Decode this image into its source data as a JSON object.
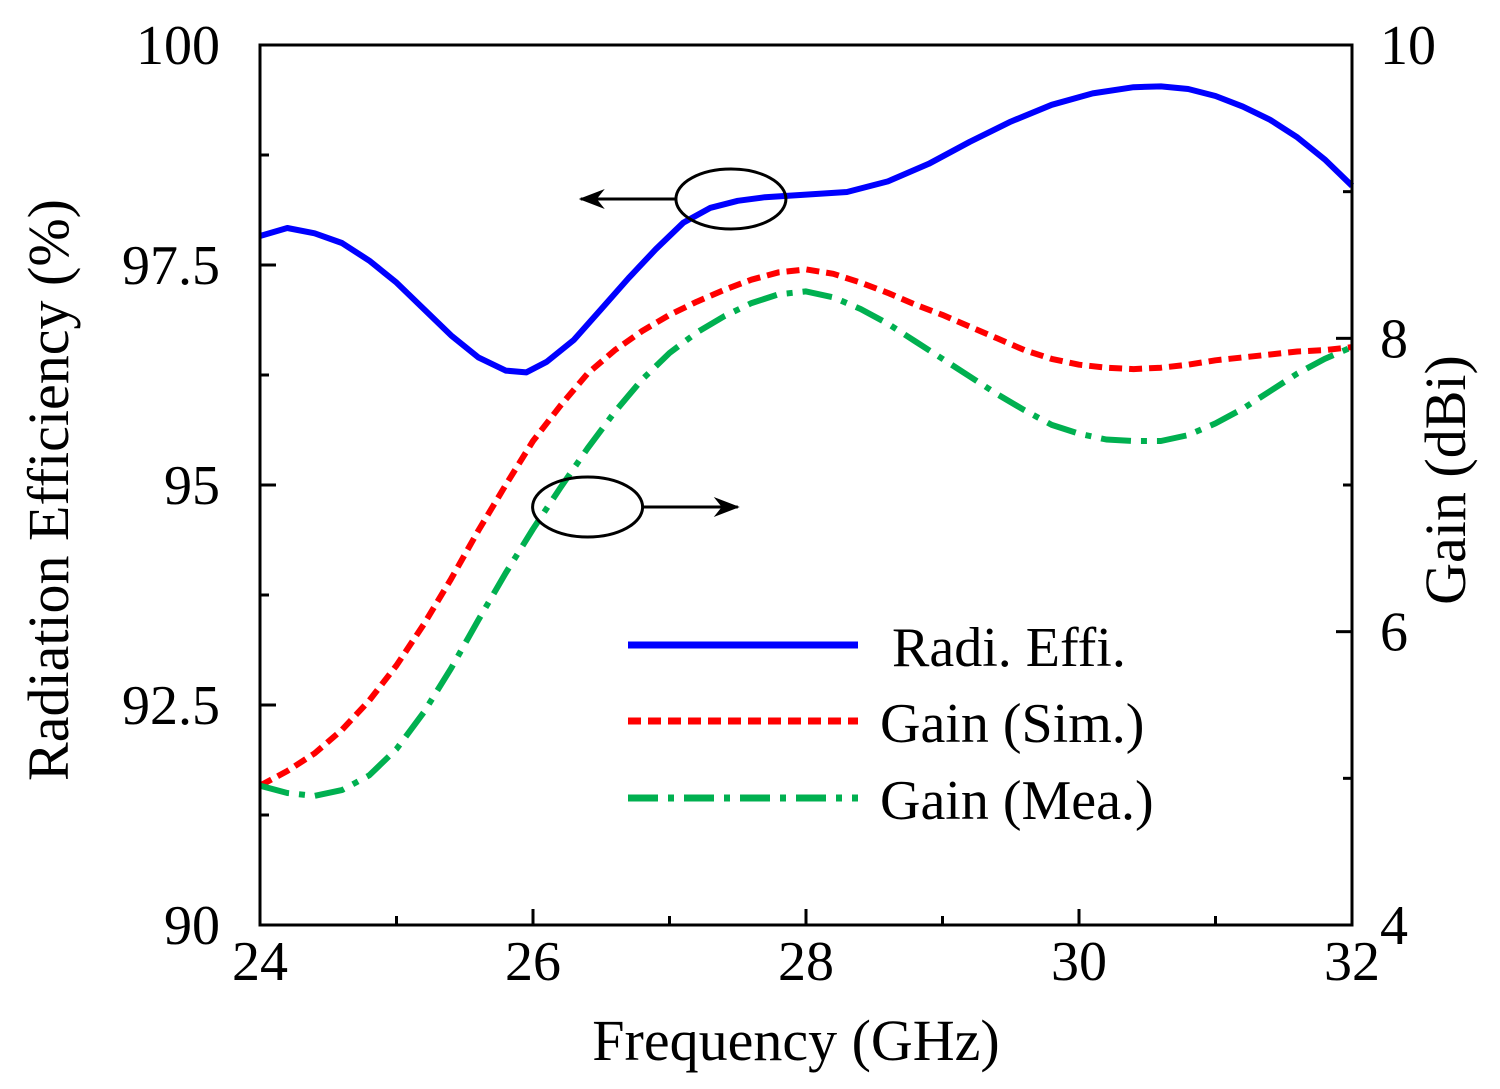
{
  "chart_data": {
    "type": "line",
    "xlabel": "Frequency (GHz)",
    "ylabel_left": "Radiation Efficiency (%)",
    "ylabel_right": "Gain (dBi)",
    "xlim": [
      24,
      32
    ],
    "ylim_left": [
      90,
      100
    ],
    "ylim_right": [
      4,
      10
    ],
    "x_ticks": [
      24,
      26,
      28,
      30,
      32
    ],
    "x_tick_labels": [
      "24",
      "26",
      "28",
      "30",
      "32"
    ],
    "x_minor_ticks": [
      25,
      27,
      29,
      31
    ],
    "y_left_ticks": [
      90,
      92.5,
      95,
      97.5,
      100
    ],
    "y_left_tick_labels": [
      "90",
      "92.5",
      "95",
      "97.5",
      "100"
    ],
    "y_left_minor_ticks": [
      91.25,
      93.75,
      96.25,
      98.75
    ],
    "y_right_ticks": [
      4,
      6,
      8,
      10
    ],
    "y_right_tick_labels": [
      "4",
      "6",
      "8",
      "10"
    ],
    "y_right_minor_ticks": [
      5,
      7,
      9
    ],
    "series": [
      {
        "name": "Radi. Effi.",
        "axis": "left",
        "color": "#0000ff",
        "style": "solid",
        "x": [
          24.0,
          24.2,
          24.4,
          24.6,
          24.8,
          25.0,
          25.2,
          25.4,
          25.6,
          25.8,
          25.95,
          26.1,
          26.3,
          26.5,
          26.7,
          26.9,
          27.1,
          27.3,
          27.5,
          27.7,
          28.0,
          28.3,
          28.6,
          28.9,
          29.2,
          29.5,
          29.8,
          30.1,
          30.4,
          30.6,
          30.8,
          31.0,
          31.2,
          31.4,
          31.6,
          31.8,
          32.0
        ],
        "y": [
          97.83,
          97.92,
          97.86,
          97.75,
          97.55,
          97.3,
          97.0,
          96.7,
          96.45,
          96.3,
          96.28,
          96.4,
          96.65,
          97.0,
          97.35,
          97.68,
          97.98,
          98.15,
          98.23,
          98.27,
          98.3,
          98.33,
          98.45,
          98.65,
          98.9,
          99.13,
          99.32,
          99.45,
          99.52,
          99.53,
          99.5,
          99.42,
          99.3,
          99.15,
          98.95,
          98.7,
          98.4
        ]
      },
      {
        "name": "Gain (Sim.)",
        "axis": "right",
        "color": "#ff0000",
        "style": "dotted",
        "x": [
          24.0,
          24.2,
          24.4,
          24.6,
          24.8,
          25.0,
          25.2,
          25.4,
          25.6,
          25.8,
          26.0,
          26.2,
          26.4,
          26.6,
          26.8,
          27.0,
          27.2,
          27.4,
          27.6,
          27.8,
          28.0,
          28.2,
          28.4,
          28.6,
          28.8,
          29.0,
          29.2,
          29.4,
          29.6,
          29.8,
          30.0,
          30.2,
          30.4,
          30.6,
          30.8,
          31.0,
          31.2,
          31.4,
          31.6,
          31.8,
          32.0
        ],
        "y": [
          4.95,
          5.05,
          5.17,
          5.33,
          5.53,
          5.77,
          6.05,
          6.36,
          6.69,
          7.0,
          7.3,
          7.54,
          7.76,
          7.92,
          8.05,
          8.16,
          8.25,
          8.33,
          8.4,
          8.45,
          8.47,
          8.44,
          8.38,
          8.31,
          8.23,
          8.16,
          8.08,
          8.0,
          7.92,
          7.86,
          7.82,
          7.8,
          7.79,
          7.8,
          7.82,
          7.85,
          7.87,
          7.89,
          7.91,
          7.92,
          7.94
        ]
      },
      {
        "name": "Gain (Mea.)",
        "axis": "right",
        "color": "#00b050",
        "style": "dashdot",
        "x": [
          24.0,
          24.2,
          24.4,
          24.6,
          24.8,
          25.0,
          25.2,
          25.4,
          25.6,
          25.8,
          26.0,
          26.2,
          26.4,
          26.6,
          26.8,
          27.0,
          27.2,
          27.4,
          27.6,
          27.8,
          28.0,
          28.2,
          28.4,
          28.6,
          28.8,
          29.0,
          29.2,
          29.4,
          29.6,
          29.8,
          30.0,
          30.2,
          30.4,
          30.6,
          30.8,
          31.0,
          31.2,
          31.4,
          31.6,
          31.8,
          32.0
        ],
        "y": [
          4.95,
          4.9,
          4.88,
          4.92,
          5.02,
          5.2,
          5.45,
          5.75,
          6.08,
          6.4,
          6.7,
          6.98,
          7.25,
          7.5,
          7.72,
          7.9,
          8.04,
          8.15,
          8.24,
          8.3,
          8.32,
          8.28,
          8.2,
          8.1,
          7.98,
          7.86,
          7.74,
          7.62,
          7.51,
          7.41,
          7.35,
          7.31,
          7.3,
          7.3,
          7.34,
          7.42,
          7.52,
          7.64,
          7.76,
          7.86,
          7.94
        ]
      }
    ],
    "annotations": [
      {
        "label": "efficiency-ellipse",
        "cx": 27.45,
        "cy": 98.25,
        "axis": "left",
        "arrow_to_x": 26.35,
        "direction": "left"
      },
      {
        "label": "gain-ellipse",
        "cx": 26.4,
        "cy": 6.85,
        "axis": "right",
        "arrow_to_x": 27.5,
        "direction": "right"
      }
    ],
    "legend": {
      "position": "lower-right",
      "entries": [
        "Radi. Effi.",
        "Gain (Sim.)",
        "Gain (Mea.)"
      ]
    }
  }
}
